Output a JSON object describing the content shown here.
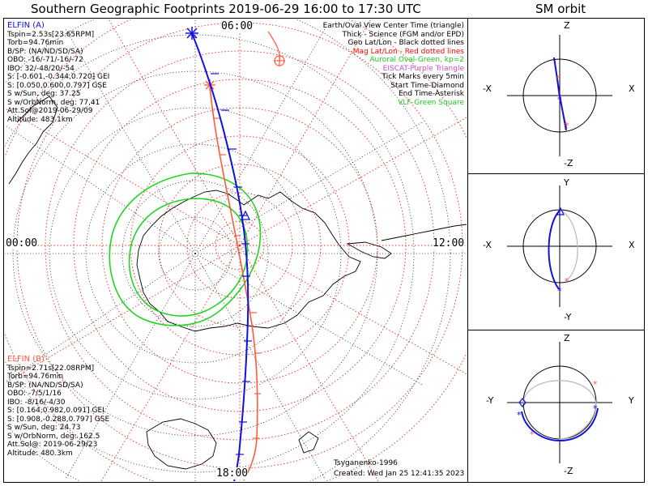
{
  "title": "Southern Geographic Footprints 2019-06-29 16:00 to 17:30 UTC",
  "sm_title": "SM orbit",
  "hours": {
    "top": "06:00",
    "left": "00:00",
    "right": "12:00",
    "bottom": "18:00"
  },
  "sat_a": {
    "name": "ELFIN (A)",
    "color": "#1010e0",
    "lines": [
      "Tspin=2.53s[23.65RPM]",
      "Torb=94.76min",
      "B/SP: (NA/ND/SD/SA)",
      "OBO: -16/-71/-16/-72",
      "IBO: 32/-48/20/-54",
      "S: [-0.601,-0.344,0.720] GEI",
      "S: [0.050,0.600,0.797] GSE",
      "S w/Sun, deg: 37.25",
      "S w/OrbNorm, deg: 77.41",
      "Att.Sol@2019-06-29/09",
      "Altitude: 483.1km"
    ]
  },
  "sat_b": {
    "name": "ELFIN (B)",
    "color": "#ff5a3c",
    "lines": [
      "Tspin=2.71s[22.08RPM]",
      "Torb=94.76min",
      "B/SP: (NA/ND/SD/SA)",
      "OBO: -7/5/1/16",
      "IBO: -8/16/-4/30",
      "S: [0.164,0.982,0.091] GEI",
      "S: [0.908,-0.288,0.797] GSE",
      "S w/Sun, deg: 24.73",
      "S w/OrbNorm, deg: 162.5",
      "Att.Sol@: 2019-06-29/23",
      "Altitude: 480.3km"
    ]
  },
  "legend": [
    {
      "text": "Earth/Oval View Center Time (triangle)",
      "color": "#000000"
    },
    {
      "text": "Thick - Science (FGM and/or EPD)",
      "color": "#000000"
    },
    {
      "text": "Geo Lat/Lon - Black dotted lines",
      "color": "#000000"
    },
    {
      "text": "Mag Lat/Lon - Red dotted lines",
      "color": "#ff0000"
    },
    {
      "text": "Auroral Oval-Green, kp=2",
      "color": "#1ec81e"
    },
    {
      "text": "EISCAT-Purple Triangle",
      "color": "#c850c8"
    },
    {
      "text": "Tick Marks every 5min",
      "color": "#000000"
    },
    {
      "text": "Start Time-Diamond",
      "color": "#000000"
    },
    {
      "text": "End Time-Asterisk",
      "color": "#000000"
    },
    {
      "text": "VLF-Green Square",
      "color": "#1ec81e"
    }
  ],
  "credit": "Tsyganenko-1996",
  "created": "Created: Wed Jan 25 12:41:35 2023",
  "sm_panels": [
    {
      "top": "Z",
      "bottom": "-Z",
      "left": "-X",
      "right": "X"
    },
    {
      "top": "Y",
      "bottom": "-Y",
      "left": "-X",
      "right": "X"
    },
    {
      "top": "Z",
      "bottom": "-Z",
      "left": "-Y",
      "right": "Y"
    }
  ]
}
